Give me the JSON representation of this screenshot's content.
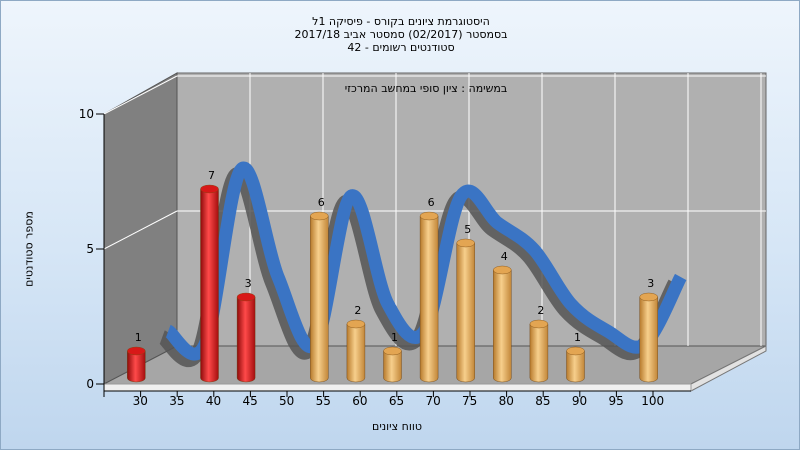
{
  "colors": {
    "red_bar": "#e21818",
    "orange_bar": "#e8a850",
    "ribbon": "#3a74c4",
    "wall": "#b0b0b0",
    "left_wall": "#808080",
    "floor": "#a8a8a8"
  },
  "chart_data": {
    "type": "bar",
    "title_lines": [
      "היסטוגרמת ציונים בקורס - פיסיקה 1ל",
      "בסמסטר (02/2017) סמסטר אביב 2017/18",
      "סטודנטים רשומים - 42"
    ],
    "subtitle": "במשימה : ציון סופי במחשב המרכזי",
    "xlabel": "טווח ציונים",
    "ylabel": "מספר סטודנטים",
    "categories": [
      "30",
      "35",
      "40",
      "45",
      "50",
      "55",
      "60",
      "65",
      "70",
      "75",
      "80",
      "85",
      "90",
      "95",
      "100"
    ],
    "values": [
      1,
      0,
      7,
      3,
      0,
      6,
      2,
      1,
      6,
      5,
      4,
      2,
      1,
      0,
      3
    ],
    "bar_colors": [
      "red",
      "red",
      "red",
      "red",
      "red",
      "orange",
      "orange",
      "orange",
      "orange",
      "orange",
      "orange",
      "orange",
      "orange",
      "orange",
      "orange"
    ],
    "y_ticks": [
      "0",
      "5",
      "10"
    ],
    "ylim": [
      0,
      10
    ],
    "grid": true,
    "three_d": true,
    "overlay": "smoothed distribution ribbon"
  }
}
